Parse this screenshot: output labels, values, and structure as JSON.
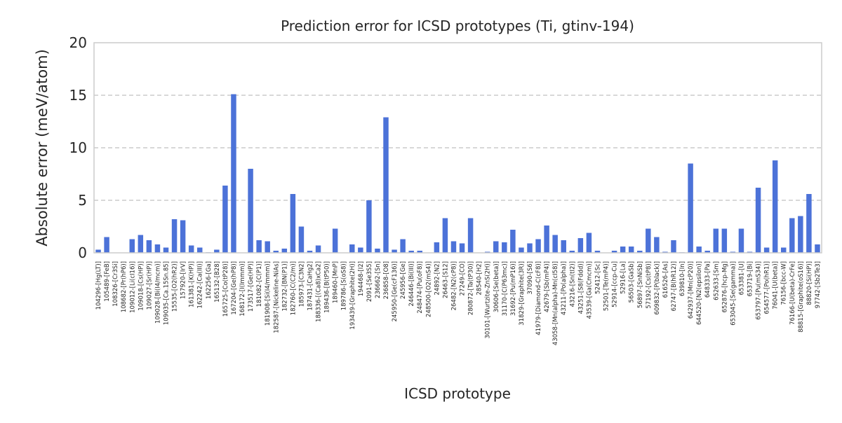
{
  "chart_data": {
    "type": "bar",
    "title": "Prediction error for ICSD prototypes (Ti, gtinv-194)",
    "xlabel": "ICSD prototype",
    "ylabel": "Absolute error (meV/atom)",
    "ylim": [
      0,
      20
    ],
    "yticks": [
      0,
      5,
      10,
      15,
      20
    ],
    "grid": "horizontal dashed",
    "bar_color": "#4c72d8",
    "categories": [
      "104296-[Hg(LT)]",
      "105489-[FeB]",
      "108326-[Cr3Si]",
      "108682-[Pr(hP6)]",
      "109012-[Li(cI16)]",
      "109018-[Cs(HP)]",
      "109027-[Sr(HP)]",
      "109028-[Bi(I4/mcm)]",
      "109035-[Ca.15Sn.85]",
      "15535-[O2(hR2)]",
      "157920-[IrV]",
      "161381-[K(HP)]",
      "162242-[Ca(III)]",
      "162256-[Ga]",
      "165132-[B28]",
      "165725-[Co(tP28)]",
      "167204-[Ge(hP8)]",
      "168172-[I(Immm)]",
      "173517-[Ge(HP)]",
      "181082-[C(P1)]",
      "181908-[Si(I4/mmm)]",
      "182587-[Nickeline-NiAs]",
      "182732-[BN(P1)]",
      "182760-[C(C2/m)]",
      "185973-[C3N2]",
      "187431-[CaHg2]",
      "188336-[(Ca8)xCa2]",
      "189436-[B(tP50)]",
      "189460-[MnP]",
      "189786-[S(oS8)]",
      "193439-[Graphite(2H)]",
      "194468-[I2]",
      "2091-[Se3S5]",
      "236662-[Sn]",
      "236858-[O8]",
      "245950-[Ge(cF136)]",
      "245956-[Ge]",
      "246446-[Bi(III)]",
      "248474-[Pu(oF8)]",
      "248500-[O2(mS4)]",
      "24892-[N2]",
      "26463-[S12]",
      "26482-[N2(cP8)]",
      "27249-[CO]",
      "280872-[Ta(tP30)]",
      "28540-[H2]",
      "30101-[Wurtzite-ZnS(2H)]",
      "30606-[Se(beta)]",
      "31170-[C(P63mc)]",
      "31692-[Pu(mP16)]",
      "31829-[Graphite(3R)]",
      "37090-[S6]",
      "41979-[Diamond-C(cF8)]",
      "42679-[Sb(mP4)]",
      "43058-[Mn(alpha)-Mn(cI58)]",
      "43211-[Po(alpha)]",
      "43216-[Sn(tI2)]",
      "43251-[S8(Fddd)]",
      "43539-[Ga(Cmcm)]",
      "52412-[Sc]",
      "52501-[Te(mP4)]",
      "52914-[ccp-Cu]",
      "52916-[La]",
      "56503-[GaSb]",
      "56897-[SnNiSb]",
      "57192-[Cs(tP8)]",
      "609832-[P(black)]",
      "616526-[As]",
      "62747-[B(hR12)]",
      "639810-[In]",
      "642937-[Mn(cP20)]",
      "644520-[N2(epsilon)]",
      "648333-[Pa]",
      "652633-[Sm]",
      "652876-[hcp-Mg]",
      "653045-[Se(gamma)]",
      "653381-[U]",
      "653719-[Bi]",
      "653797-[Pu(mS34)]",
      "654577-[Po(hR1)]",
      "76041-[U(beta)]",
      "76156-[bcc-W]",
      "76166-[U(beta)-CrFe]",
      "88815-[Graphite(oS16)]",
      "88820-[Si(HP)]",
      "97742-[Sb2Te3]"
    ],
    "values": [
      0.3,
      1.5,
      0.0,
      0.0,
      1.3,
      1.7,
      1.2,
      0.8,
      0.5,
      3.2,
      3.1,
      0.7,
      0.5,
      0.05,
      0.3,
      6.4,
      15.1,
      0.0,
      8.0,
      1.2,
      1.1,
      0.2,
      0.4,
      5.6,
      2.5,
      0.2,
      0.7,
      0.0,
      2.3,
      0.0,
      0.8,
      0.5,
      5.0,
      0.4,
      12.9,
      0.3,
      1.3,
      0.2,
      0.2,
      0.0,
      1.0,
      3.3,
      1.1,
      0.9,
      3.3,
      0.0,
      0.1,
      1.1,
      1.0,
      2.2,
      0.5,
      0.9,
      1.3,
      2.6,
      1.7,
      1.2,
      0.2,
      1.4,
      1.9,
      0.2,
      0.0,
      0.2,
      0.6,
      0.6,
      0.2,
      2.3,
      1.5,
      0.1,
      1.2,
      0.05,
      8.5,
      0.6,
      0.2,
      2.3,
      2.3,
      0.1,
      2.3,
      0.1,
      6.2,
      0.5,
      8.8,
      0.5,
      3.3,
      3.5,
      5.6,
      0.8
    ]
  }
}
